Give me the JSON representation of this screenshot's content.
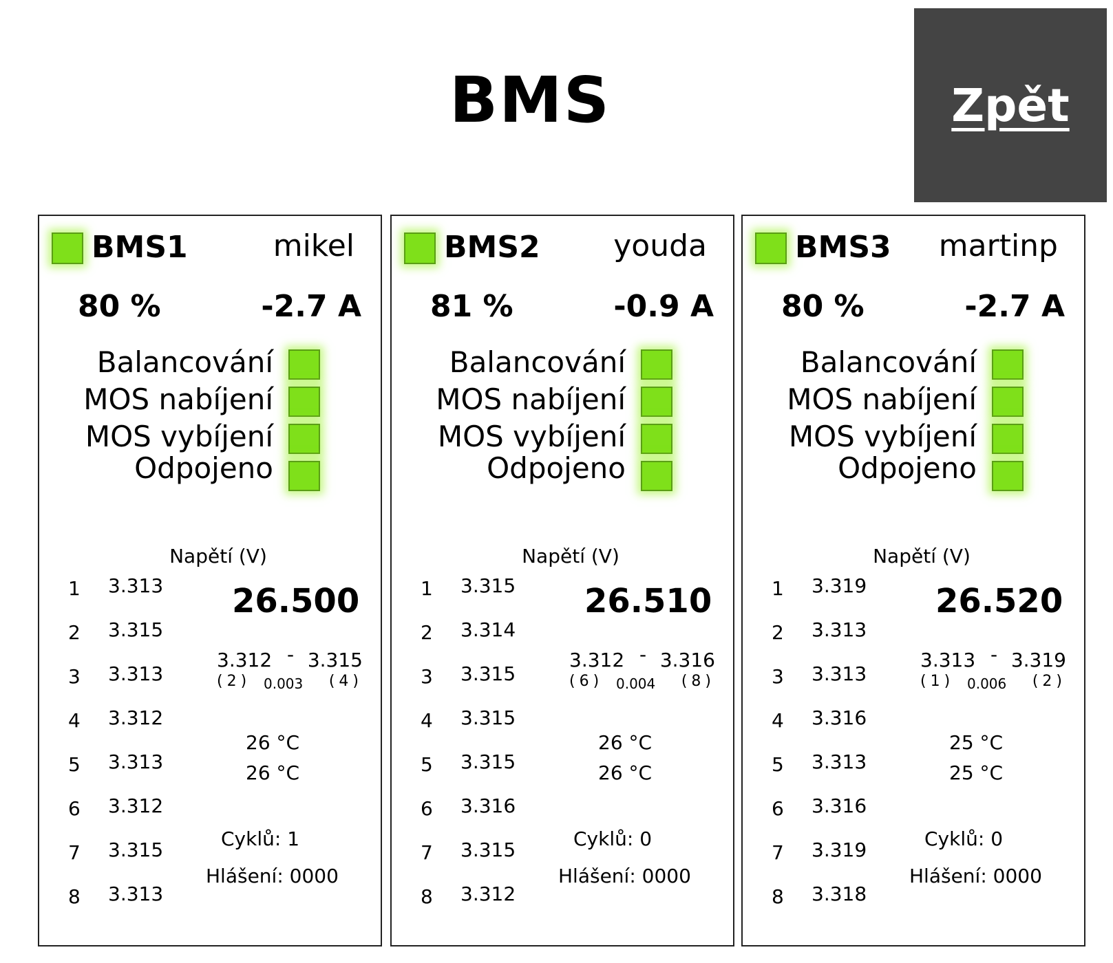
{
  "header": {
    "title": "BMS",
    "back_label": "Zpět"
  },
  "colors": {
    "led_on": "#7fe01a",
    "button_bg": "#444444"
  },
  "flag_labels": [
    "Balancování",
    "MOS nabíjení",
    "MOS vybíjení",
    "Odpojeno"
  ],
  "voltage_header": "Napětí (V)",
  "panels": [
    {
      "id": "BMS1",
      "user": "mikel",
      "soc": "80 %",
      "current": "-2.7 A",
      "cells": [
        {
          "idx": "1",
          "v": "3.313"
        },
        {
          "idx": "2",
          "v": "3.315"
        },
        {
          "idx": "3",
          "v": "3.313"
        },
        {
          "idx": "4",
          "v": "3.312"
        },
        {
          "idx": "5",
          "v": "3.313"
        },
        {
          "idx": "6",
          "v": "3.312"
        },
        {
          "idx": "7",
          "v": "3.315"
        },
        {
          "idx": "8",
          "v": "3.313"
        }
      ],
      "total": "26.500",
      "range": {
        "min": "3.312",
        "dash": "-",
        "max": "3.315",
        "min_cell": "(2)",
        "diff": "0.003",
        "max_cell": "(4)"
      },
      "temps": [
        "26 °C",
        "26 °C"
      ],
      "cycles": "Cyklů: 1",
      "alarm": "Hlášení: 0000"
    },
    {
      "id": "BMS2",
      "user": "youda",
      "soc": "81 %",
      "current": "-0.9 A",
      "cells": [
        {
          "idx": "1",
          "v": "3.315"
        },
        {
          "idx": "2",
          "v": "3.314"
        },
        {
          "idx": "3",
          "v": "3.315"
        },
        {
          "idx": "4",
          "v": "3.315"
        },
        {
          "idx": "5",
          "v": "3.315"
        },
        {
          "idx": "6",
          "v": "3.316"
        },
        {
          "idx": "7",
          "v": "3.315"
        },
        {
          "idx": "8",
          "v": "3.312"
        }
      ],
      "total": "26.510",
      "range": {
        "min": "3.312",
        "dash": "-",
        "max": "3.316",
        "min_cell": "(6)",
        "diff": "0.004",
        "max_cell": "(8)"
      },
      "temps": [
        "26 °C",
        "26 °C"
      ],
      "cycles": "Cyklů: 0",
      "alarm": "Hlášení: 0000"
    },
    {
      "id": "BMS3",
      "user": "martinp",
      "soc": "80 %",
      "current": "-2.7 A",
      "cells": [
        {
          "idx": "1",
          "v": "3.319"
        },
        {
          "idx": "2",
          "v": "3.313"
        },
        {
          "idx": "3",
          "v": "3.313"
        },
        {
          "idx": "4",
          "v": "3.316"
        },
        {
          "idx": "5",
          "v": "3.313"
        },
        {
          "idx": "6",
          "v": "3.316"
        },
        {
          "idx": "7",
          "v": "3.319"
        },
        {
          "idx": "8",
          "v": "3.318"
        }
      ],
      "total": "26.520",
      "range": {
        "min": "3.313",
        "dash": "-",
        "max": "3.319",
        "min_cell": "(1)",
        "diff": "0.006",
        "max_cell": "(2)"
      },
      "temps": [
        "25 °C",
        "25 °C"
      ],
      "cycles": "Cyklů: 0",
      "alarm": "Hlášení: 0000"
    }
  ]
}
